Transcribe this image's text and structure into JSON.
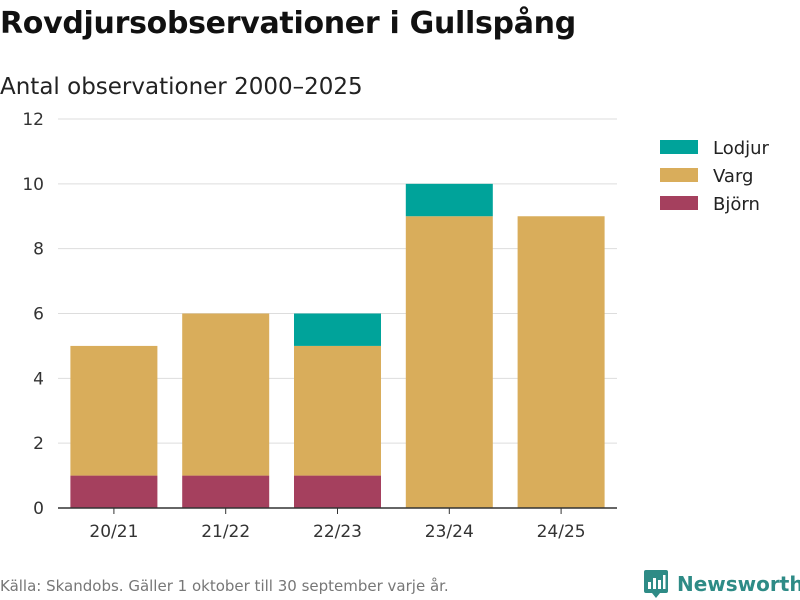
{
  "title": "Rovdjursobservationer i Gullspång",
  "subtitle": "Antal observationer 2000–2025",
  "source": "Källa: Skandobs. Gäller 1 oktober till 30 september varje år.",
  "brand": {
    "name": "Newsworthy",
    "icon": "newsworthy-chart-pin-icon",
    "color": "#2e8b86"
  },
  "chart_data": {
    "type": "bar",
    "stacked": true,
    "categories": [
      "20/21",
      "21/22",
      "22/23",
      "23/24",
      "24/25"
    ],
    "series": [
      {
        "name": "Björn",
        "color": "#a5405e",
        "values": [
          1,
          1,
          1,
          0,
          0
        ]
      },
      {
        "name": "Varg",
        "color": "#d9ad5b",
        "values": [
          4,
          5,
          4,
          9,
          9
        ]
      },
      {
        "name": "Lodjur",
        "color": "#00a39a",
        "values": [
          0,
          0,
          1,
          1,
          0
        ]
      }
    ],
    "legend_order": [
      "Lodjur",
      "Varg",
      "Björn"
    ],
    "legend_position": "top-right",
    "ylim": [
      0,
      12
    ],
    "yticks": [
      0,
      2,
      4,
      6,
      8,
      10,
      12
    ],
    "grid": true
  }
}
